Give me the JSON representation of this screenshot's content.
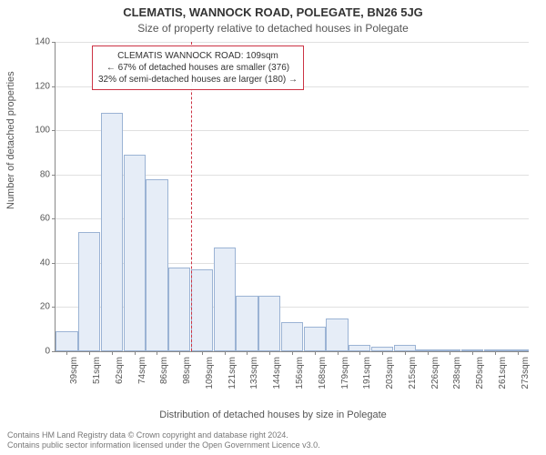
{
  "title_main": "CLEMATIS, WANNOCK ROAD, POLEGATE, BN26 5JG",
  "title_sub": "Size of property relative to detached houses in Polegate",
  "y_label": "Number of detached properties",
  "x_label": "Distribution of detached houses by size in Polegate",
  "chart": {
    "type": "histogram",
    "y_max": 140,
    "y_ticks": [
      0,
      20,
      40,
      60,
      80,
      100,
      120,
      140
    ],
    "x_categories": [
      "39sqm",
      "51sqm",
      "62sqm",
      "74sqm",
      "86sqm",
      "98sqm",
      "109sqm",
      "121sqm",
      "133sqm",
      "144sqm",
      "156sqm",
      "168sqm",
      "179sqm",
      "191sqm",
      "203sqm",
      "215sqm",
      "226sqm",
      "238sqm",
      "250sqm",
      "261sqm",
      "273sqm"
    ],
    "values": [
      9,
      54,
      108,
      89,
      78,
      38,
      37,
      47,
      25,
      25,
      13,
      11,
      15,
      3,
      2,
      3,
      1,
      0,
      1,
      1,
      0
    ],
    "bar_fill": "#e6edf7",
    "bar_stroke": "#9bb3d4",
    "grid_color": "#e0e0e0",
    "axis_color": "#888888",
    "marker_color": "#cc3344",
    "marker_after_index": 5
  },
  "annotation": {
    "line1": "CLEMATIS WANNOCK ROAD: 109sqm",
    "line2": "← 67% of detached houses are smaller (376)",
    "line3": "32% of semi-detached houses are larger (180) →"
  },
  "footer": {
    "line1": "Contains HM Land Registry data © Crown copyright and database right 2024.",
    "line2": "Contains public sector information licensed under the Open Government Licence v3.0."
  }
}
